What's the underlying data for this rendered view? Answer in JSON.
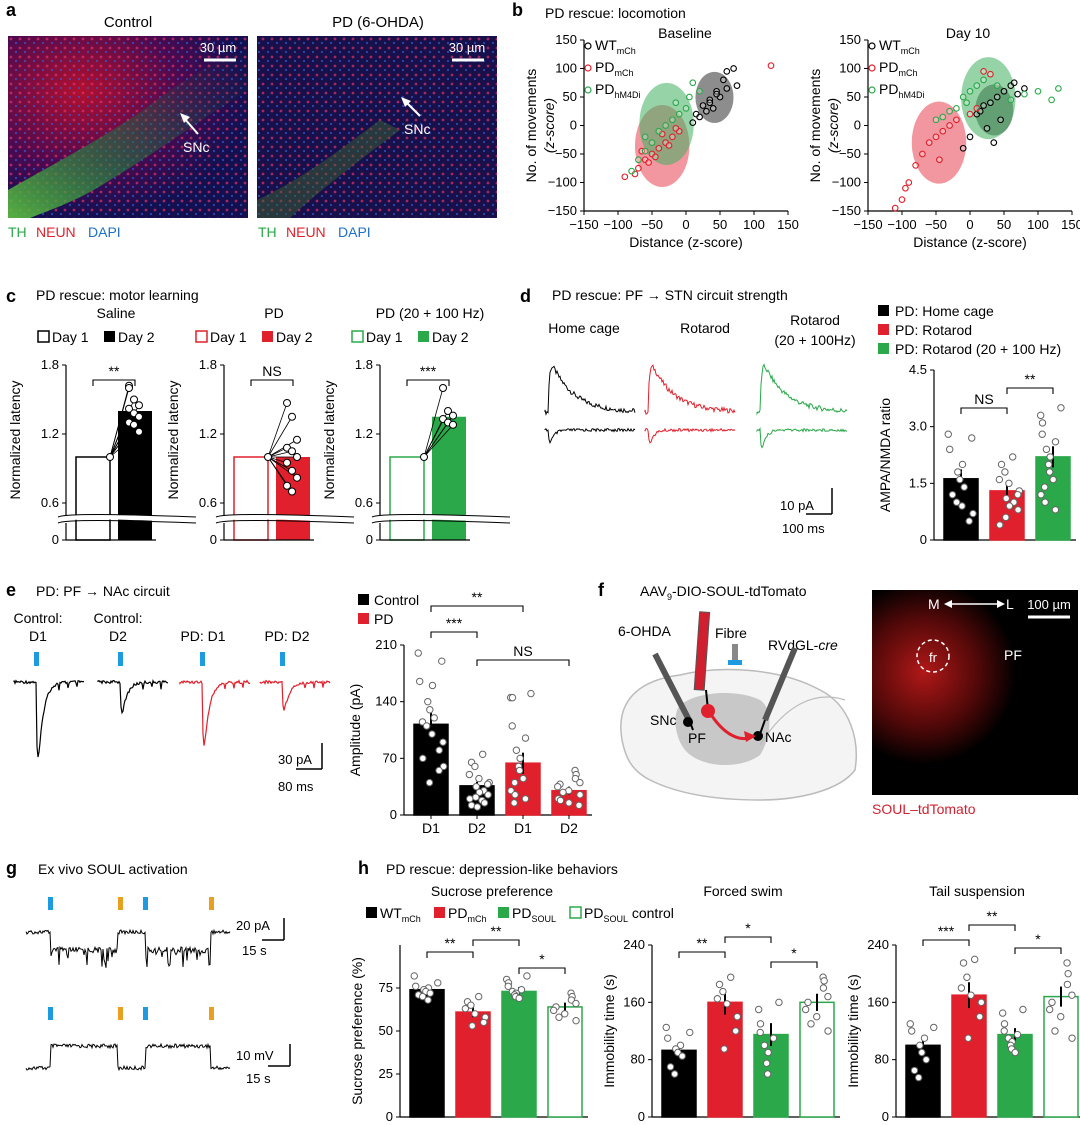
{
  "panel_letters": {
    "a": "a",
    "b": "b",
    "c": "c",
    "d": "d",
    "e": "e",
    "f": "f",
    "g": "g",
    "h": "h"
  },
  "colors": {
    "wt": "#000000",
    "pd": "#e0202c",
    "soul": "#2aa84a",
    "blue": "#1e9be0",
    "orange": "#e8a020",
    "grey": "#bbbbbb",
    "red_img": "#d02010"
  },
  "a": {
    "control_title": "Control",
    "pd_title": "PD (6-OHDA)",
    "scale": "30 µm",
    "snc": "SNc",
    "legend_th": "TH",
    "legend_neun": "NEUN",
    "legend_dapi": "DAPI"
  },
  "b": {
    "title": "PD rescue: locomotion",
    "ylabel_line1": "No. of movements",
    "ylabel_line2": "(z-score)",
    "xlabel": "Distance (z-score)",
    "ticks_x": [
      "−150",
      "−100",
      "−50",
      "0",
      "50",
      "100",
      "150"
    ],
    "ticks_y": [
      "150",
      "100",
      "50",
      "0",
      "−50",
      "−100",
      "−150"
    ],
    "legend_wt": "WT",
    "legend_wt_sub": "mCh",
    "legend_pd": "PD",
    "legend_pd_sub": "mCh",
    "legend_hm": "PD",
    "legend_hm_sub": "hM4Di"
  },
  "c": {
    "title": "PD rescue: motor learning",
    "day1": "Day 1",
    "day2": "Day 2",
    "ylabel": "Normalized latency",
    "ticks_y": [
      "1.8",
      "1.2",
      "0.6",
      "0"
    ]
  },
  "d": {
    "title": "PD rescue: PF → STN circuit strength",
    "trace_titles": [
      "Home cage",
      "Rotarod",
      "Rotarod",
      "(20 + 100Hz)"
    ],
    "scale_y": "10 pA",
    "scale_x": "100 ms",
    "legend": [
      "PD: Home cage",
      "PD: Rotarod",
      "PD: Rotarod (20 + 100 Hz)"
    ],
    "ylabel": "AMPA/NMDA ratio",
    "ticks_y": [
      "4.5",
      "3.0",
      "1.5",
      "0"
    ],
    "sig": [
      "NS",
      "**"
    ]
  },
  "e": {
    "title": "PD: PF → NAc circuit",
    "trace_labels": [
      "Control:",
      "D1",
      "Control:",
      "D2",
      "PD: D1",
      "PD: D2"
    ],
    "scale_y": "30 pA",
    "scale_x": "80 ms",
    "legend": [
      "Control",
      "PD"
    ],
    "ylabel": "Amplitude (pA)",
    "ticks_y": [
      "210",
      "140",
      "70",
      "0"
    ],
    "xcats": [
      "D1",
      "D2",
      "D1",
      "D2"
    ],
    "sig": [
      "**",
      "***",
      "NS"
    ]
  },
  "f": {
    "virus": "AAV",
    "virus_sub": "9",
    "virus_rest": "-DIO-SOUL-tdTomato",
    "ohda": "6-OHDA",
    "fibre": "Fibre",
    "rvdgl": "RVdGL-",
    "cre": "cre",
    "snc": "SNc",
    "pf": "PF",
    "nac": "NAc",
    "m": "M",
    "l": "L",
    "scale": "100 µm",
    "pf_img": "PF",
    "fr": "fr",
    "caption": "SOUL–tdTomato"
  },
  "g": {
    "title": "Ex vivo SOUL activation",
    "scale1_y": "20 pA",
    "scale1_x": "15 s",
    "scale2_y": "10 mV",
    "scale2_x": "15 s"
  },
  "h": {
    "title": "PD rescue: depression-like behaviors",
    "sub1": "Sucrose preference",
    "sub2": "Forced swim",
    "sub3": "Tail suspension",
    "legend_wt": "WT",
    "legend_wt_sub": "mCh",
    "legend_pd": "PD",
    "legend_pd_sub": "mCh",
    "legend_soul": "PD",
    "legend_soul_sub": "SOUL",
    "legend_ctrl": "PD",
    "legend_ctrl_sub": "SOUL",
    "legend_ctrl_rest": " control",
    "ylabel1": "Sucrose preference (%)",
    "ylabel2": "Immobility time (s)",
    "ylabel3": "Immobility time (s)",
    "ticks1": [
      "75",
      "50",
      "25",
      "0"
    ],
    "ticks2": [
      "240",
      "160",
      "80",
      "0"
    ],
    "ticks3": [
      "240",
      "160",
      "80",
      "0"
    ]
  },
  "chart_data": [
    {
      "type": "scatter",
      "panel": "b-baseline",
      "title": "Baseline",
      "xlabel": "Distance (z-score)",
      "ylabel": "No. of movements (z-score)",
      "xlim": [
        -150,
        150
      ],
      "ylim": [
        -150,
        150
      ],
      "series": [
        {
          "name": "WT mCh",
          "x": [
            15,
            25,
            35,
            45,
            55,
            60,
            70,
            75,
            50,
            40,
            30,
            20,
            10,
            45,
            60,
            35
          ],
          "y": [
            20,
            35,
            45,
            60,
            80,
            95,
            100,
            70,
            50,
            30,
            25,
            15,
            5,
            55,
            65,
            40
          ]
        },
        {
          "name": "PD mCh",
          "x": [
            -90,
            -70,
            -60,
            -50,
            -40,
            -30,
            -20,
            -10,
            -45,
            -55,
            -75,
            -65,
            125,
            -25,
            -35,
            -15
          ],
          "y": [
            -90,
            -75,
            -60,
            -50,
            -40,
            -30,
            -20,
            -10,
            -55,
            -65,
            -85,
            -45,
            105,
            -35,
            -15,
            -5
          ]
        },
        {
          "name": "PD hM4Di",
          "x": [
            -80,
            -70,
            -60,
            -50,
            -40,
            -20,
            -10,
            0,
            10,
            20,
            -60,
            -30,
            -15,
            5
          ],
          "y": [
            -80,
            -60,
            -45,
            -30,
            -10,
            10,
            20,
            30,
            75,
            60,
            -20,
            0,
            40,
            50
          ]
        }
      ]
    },
    {
      "type": "scatter",
      "panel": "b-day10",
      "title": "Day 10",
      "xlabel": "Distance (z-score)",
      "ylabel": "No. of movements (z-score)",
      "xlim": [
        -150,
        150
      ],
      "ylim": [
        -150,
        150
      ],
      "series": [
        {
          "name": "WT mCh",
          "x": [
            10,
            20,
            30,
            40,
            50,
            60,
            70,
            80,
            -10,
            0,
            25,
            45,
            35,
            65,
            15
          ],
          "y": [
            20,
            35,
            40,
            50,
            60,
            70,
            55,
            65,
            -40,
            -20,
            -5,
            10,
            -30,
            75,
            25
          ]
        },
        {
          "name": "PD mCh",
          "x": [
            -110,
            -100,
            -95,
            -90,
            -80,
            -70,
            -60,
            -50,
            -40,
            -30,
            -20,
            0,
            10,
            20,
            30,
            -45
          ],
          "y": [
            -145,
            -130,
            -110,
            -100,
            -70,
            -50,
            -30,
            -20,
            -10,
            0,
            10,
            20,
            30,
            95,
            90,
            -60
          ]
        },
        {
          "name": "PD hM4Di",
          "x": [
            -50,
            -40,
            -30,
            -20,
            -10,
            0,
            10,
            20,
            40,
            60,
            80,
            100,
            120,
            130,
            -5
          ],
          "y": [
            10,
            15,
            25,
            30,
            50,
            60,
            70,
            80,
            70,
            45,
            55,
            60,
            45,
            65,
            40
          ]
        }
      ]
    },
    {
      "type": "bar",
      "panel": "c-saline",
      "title": "Saline",
      "categories": [
        "Day 1",
        "Day 2"
      ],
      "values": [
        1.0,
        1.4
      ],
      "ylim": [
        0,
        1.8
      ],
      "sig": "**",
      "points": [
        [
          1,
          1,
          1,
          1,
          1,
          1,
          1,
          1,
          1,
          1
        ],
        [
          1.62,
          1.5,
          1.45,
          1.42,
          1.38,
          1.35,
          1.3,
          1.28,
          1.22,
          1.6
        ]
      ]
    },
    {
      "type": "bar",
      "panel": "c-pd",
      "title": "PD",
      "categories": [
        "Day 1",
        "Day 2"
      ],
      "values": [
        1.0,
        1.0
      ],
      "ylim": [
        0,
        1.8
      ],
      "sig": "NS",
      "points": [
        [
          1,
          1,
          1,
          1,
          1,
          1,
          1,
          1,
          1,
          1,
          1
        ],
        [
          1.47,
          1.35,
          1.15,
          1.08,
          1.05,
          1.0,
          0.95,
          0.88,
          0.82,
          0.75,
          0.7
        ]
      ]
    },
    {
      "type": "bar",
      "panel": "c-pd20",
      "title": "PD (20 + 100 Hz)",
      "categories": [
        "Day 1",
        "Day 2"
      ],
      "values": [
        1.0,
        1.35
      ],
      "ylim": [
        0,
        1.8
      ],
      "sig": "***",
      "points": [
        [
          1,
          1,
          1,
          1,
          1,
          1
        ],
        [
          1.6,
          1.4,
          1.36,
          1.33,
          1.3,
          1.28
        ]
      ]
    },
    {
      "type": "bar",
      "panel": "d",
      "categories": [
        "PD: Home cage",
        "PD: Rotarod",
        "PD: Rotarod (20 + 100 Hz)"
      ],
      "values": [
        1.62,
        1.3,
        2.2
      ],
      "errors": [
        0.25,
        0.18,
        0.28
      ],
      "ylim": [
        0,
        4.5
      ],
      "points": [
        [
          2.8,
          2.7,
          2.4,
          2.0,
          1.8,
          1.6,
          1.4,
          1.2,
          1.0,
          0.9,
          0.7,
          0.5
        ],
        [
          2.2,
          2.0,
          1.8,
          1.6,
          1.5,
          1.3,
          1.2,
          1.1,
          1.0,
          0.9,
          0.8,
          0.6,
          0.4
        ],
        [
          3.5,
          3.3,
          3.1,
          2.8,
          2.6,
          2.4,
          2.2,
          2.0,
          1.8,
          1.6,
          1.4,
          1.2,
          1.0,
          0.8
        ]
      ]
    },
    {
      "type": "bar",
      "panel": "e",
      "categories": [
        "D1",
        "D2",
        "D1",
        "D2"
      ],
      "groups": [
        "Control",
        "Control",
        "PD",
        "PD"
      ],
      "values": [
        112,
        36,
        64,
        30
      ],
      "errors": [
        14,
        5,
        13,
        5
      ],
      "ylim": [
        0,
        210
      ],
      "points": [
        [
          200,
          190,
          165,
          160,
          140,
          130,
          120,
          115,
          110,
          100,
          90,
          80,
          70,
          60,
          55,
          40
        ],
        [
          75,
          65,
          60,
          50,
          45,
          40,
          38,
          35,
          30,
          28,
          25,
          22,
          20,
          18,
          15,
          12,
          10
        ],
        [
          150,
          145,
          145,
          110,
          95,
          80,
          70,
          60,
          55,
          45,
          40,
          30,
          25,
          20,
          15
        ],
        [
          55,
          50,
          45,
          40,
          38,
          35,
          30,
          28,
          25,
          20,
          18,
          15,
          12
        ]
      ]
    },
    {
      "type": "bar",
      "panel": "h-sucrose",
      "title": "Sucrose preference",
      "categories": [
        "WT mCh",
        "PD mCh",
        "PD SOUL",
        "PD SOUL control"
      ],
      "values": [
        74,
        61,
        73,
        64
      ],
      "errors": [
        2.5,
        3,
        2.5,
        2.5
      ],
      "ylim": [
        0,
        100
      ],
      "points": [
        [
          82,
          78,
          76,
          75,
          74,
          73,
          72,
          71,
          70,
          68
        ],
        [
          70,
          67,
          65,
          63,
          60,
          58,
          55,
          53
        ],
        [
          82,
          80,
          78,
          76,
          74,
          73,
          72,
          71,
          70,
          69
        ],
        [
          72,
          70,
          68,
          66,
          64,
          62,
          60,
          58,
          56
        ]
      ]
    },
    {
      "type": "bar",
      "panel": "h-forced-swim",
      "title": "Forced swim",
      "categories": [
        "WT mCh",
        "PD mCh",
        "PD SOUL",
        "PD SOUL control"
      ],
      "values": [
        93,
        160,
        115,
        160
      ],
      "errors": [
        10,
        17,
        16,
        12
      ],
      "ylim": [
        0,
        240
      ],
      "points": [
        [
          125,
          118,
          110,
          100,
          95,
          90,
          85,
          70,
          60
        ],
        [
          195,
          185,
          175,
          165,
          158,
          140,
          120,
          95
        ],
        [
          160,
          150,
          130,
          118,
          110,
          100,
          90,
          75,
          60
        ],
        [
          195,
          190,
          180,
          168,
          160,
          150,
          140,
          130,
          120
        ]
      ]
    },
    {
      "type": "bar",
      "panel": "h-tail-suspension",
      "title": "Tail suspension",
      "categories": [
        "WT mCh",
        "PD mCh",
        "PD SOUL",
        "PD SOUL control"
      ],
      "values": [
        100,
        170,
        115,
        168
      ],
      "errors": [
        12,
        18,
        9,
        14
      ],
      "ylim": [
        0,
        240
      ],
      "points": [
        [
          130,
          125,
          120,
          110,
          100,
          90,
          80,
          65,
          55
        ],
        [
          220,
          215,
          195,
          180,
          170,
          160,
          140,
          110
        ],
        [
          150,
          145,
          130,
          120,
          115,
          110,
          105,
          100,
          95,
          90
        ],
        [
          215,
          200,
          185,
          170,
          160,
          150,
          140,
          120,
          110
        ]
      ]
    }
  ]
}
